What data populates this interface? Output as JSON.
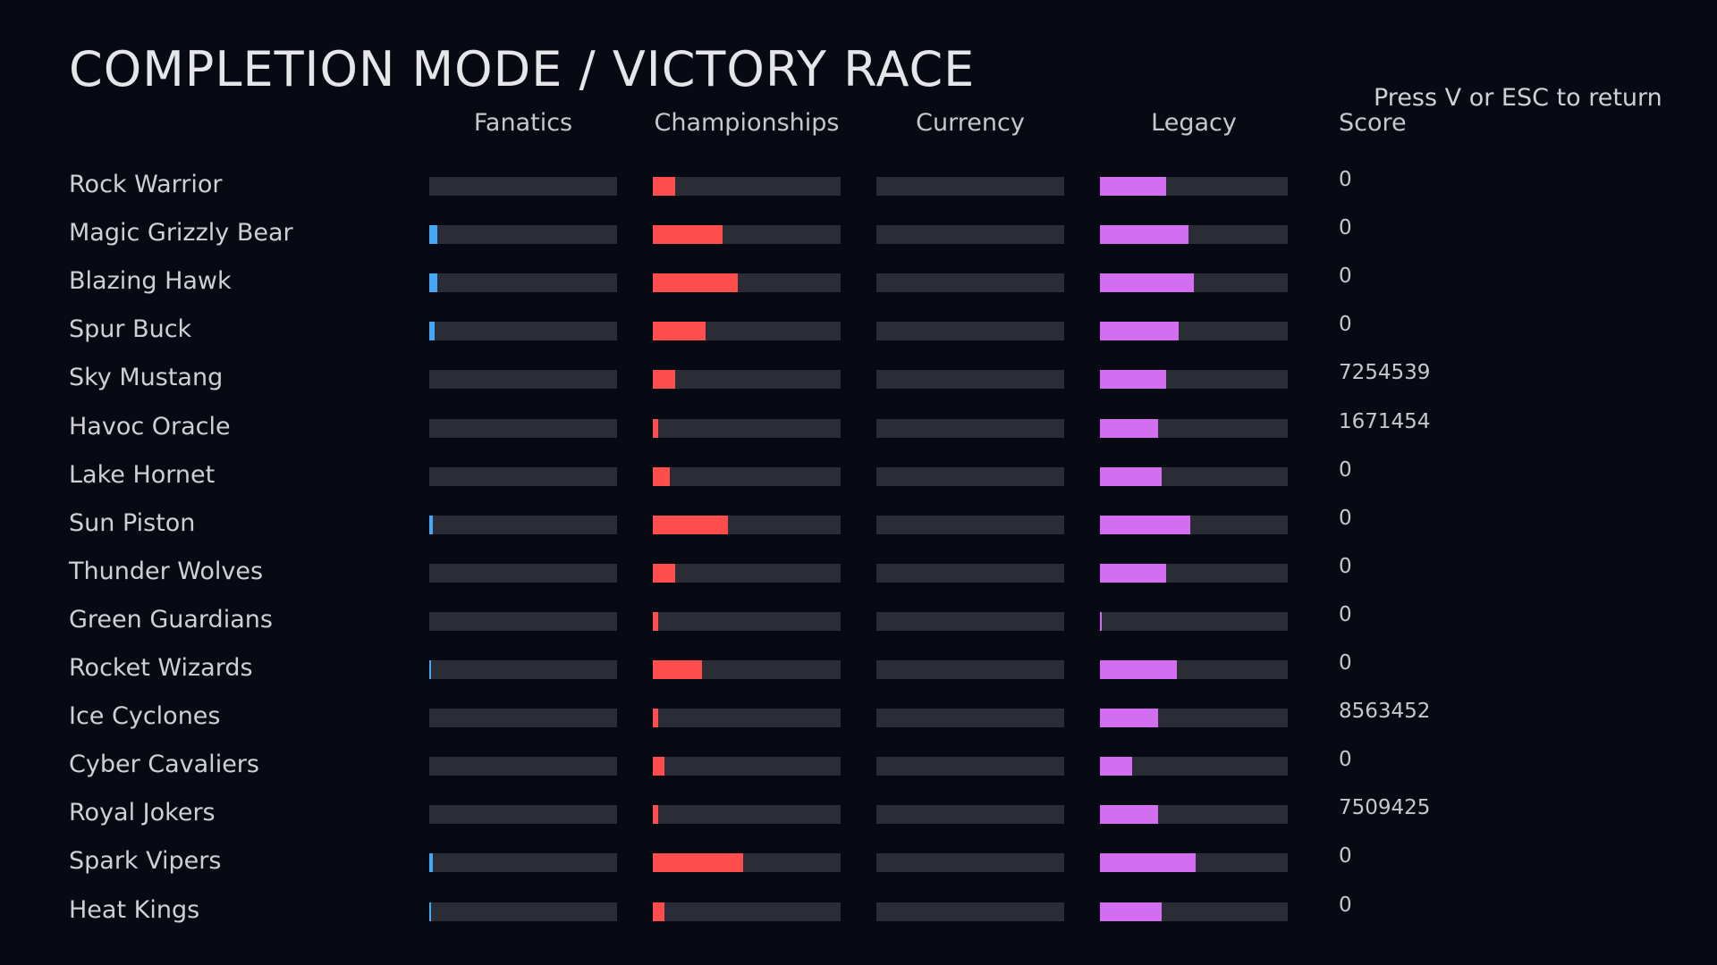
{
  "title": "COMPLETION MODE / VICTORY RACE",
  "hint": "Press V or ESC to return",
  "columns": [
    "Fanatics",
    "Championships",
    "Currency",
    "Legacy",
    "Score"
  ],
  "bar_colors": [
    "#45a8f5",
    "#ff4d4d",
    "#4a4c58",
    "#d36ef0"
  ],
  "rows": [
    {
      "name": "Rock Warrior",
      "bars": [
        0,
        12,
        0,
        35
      ],
      "score": 0
    },
    {
      "name": "Magic Grizzly Bear",
      "bars": [
        4.5,
        37,
        0,
        47
      ],
      "score": 0
    },
    {
      "name": "Blazing Hawk",
      "bars": [
        4.5,
        45,
        0,
        50
      ],
      "score": 0
    },
    {
      "name": "Spur Buck",
      "bars": [
        3,
        28,
        0,
        42
      ],
      "score": 0
    },
    {
      "name": "Sky Mustang",
      "bars": [
        0,
        12,
        0,
        35
      ],
      "score": 7254539
    },
    {
      "name": "Havoc Oracle",
      "bars": [
        0,
        3,
        0,
        31
      ],
      "score": 1671454
    },
    {
      "name": "Lake Hornet",
      "bars": [
        0,
        9,
        0,
        33
      ],
      "score": 0
    },
    {
      "name": "Sun Piston",
      "bars": [
        2,
        40,
        0,
        48
      ],
      "score": 0
    },
    {
      "name": "Thunder Wolves",
      "bars": [
        0,
        12,
        0,
        35
      ],
      "score": 0
    },
    {
      "name": "Green Guardians",
      "bars": [
        0,
        3,
        0,
        1
      ],
      "score": 0
    },
    {
      "name": "Rocket Wizards",
      "bars": [
        1,
        26,
        0,
        41
      ],
      "score": 0
    },
    {
      "name": "Ice Cyclones",
      "bars": [
        0,
        3,
        0,
        31
      ],
      "score": 8563452
    },
    {
      "name": "Cyber Cavaliers",
      "bars": [
        0,
        6,
        0,
        17
      ],
      "score": 0
    },
    {
      "name": "Royal Jokers",
      "bars": [
        0,
        3,
        0,
        31
      ],
      "score": 7509425
    },
    {
      "name": "Spark Vipers",
      "bars": [
        2,
        48,
        0,
        51
      ],
      "score": 0
    },
    {
      "name": "Heat Kings",
      "bars": [
        1,
        6,
        0,
        33
      ],
      "score": 0
    }
  ]
}
